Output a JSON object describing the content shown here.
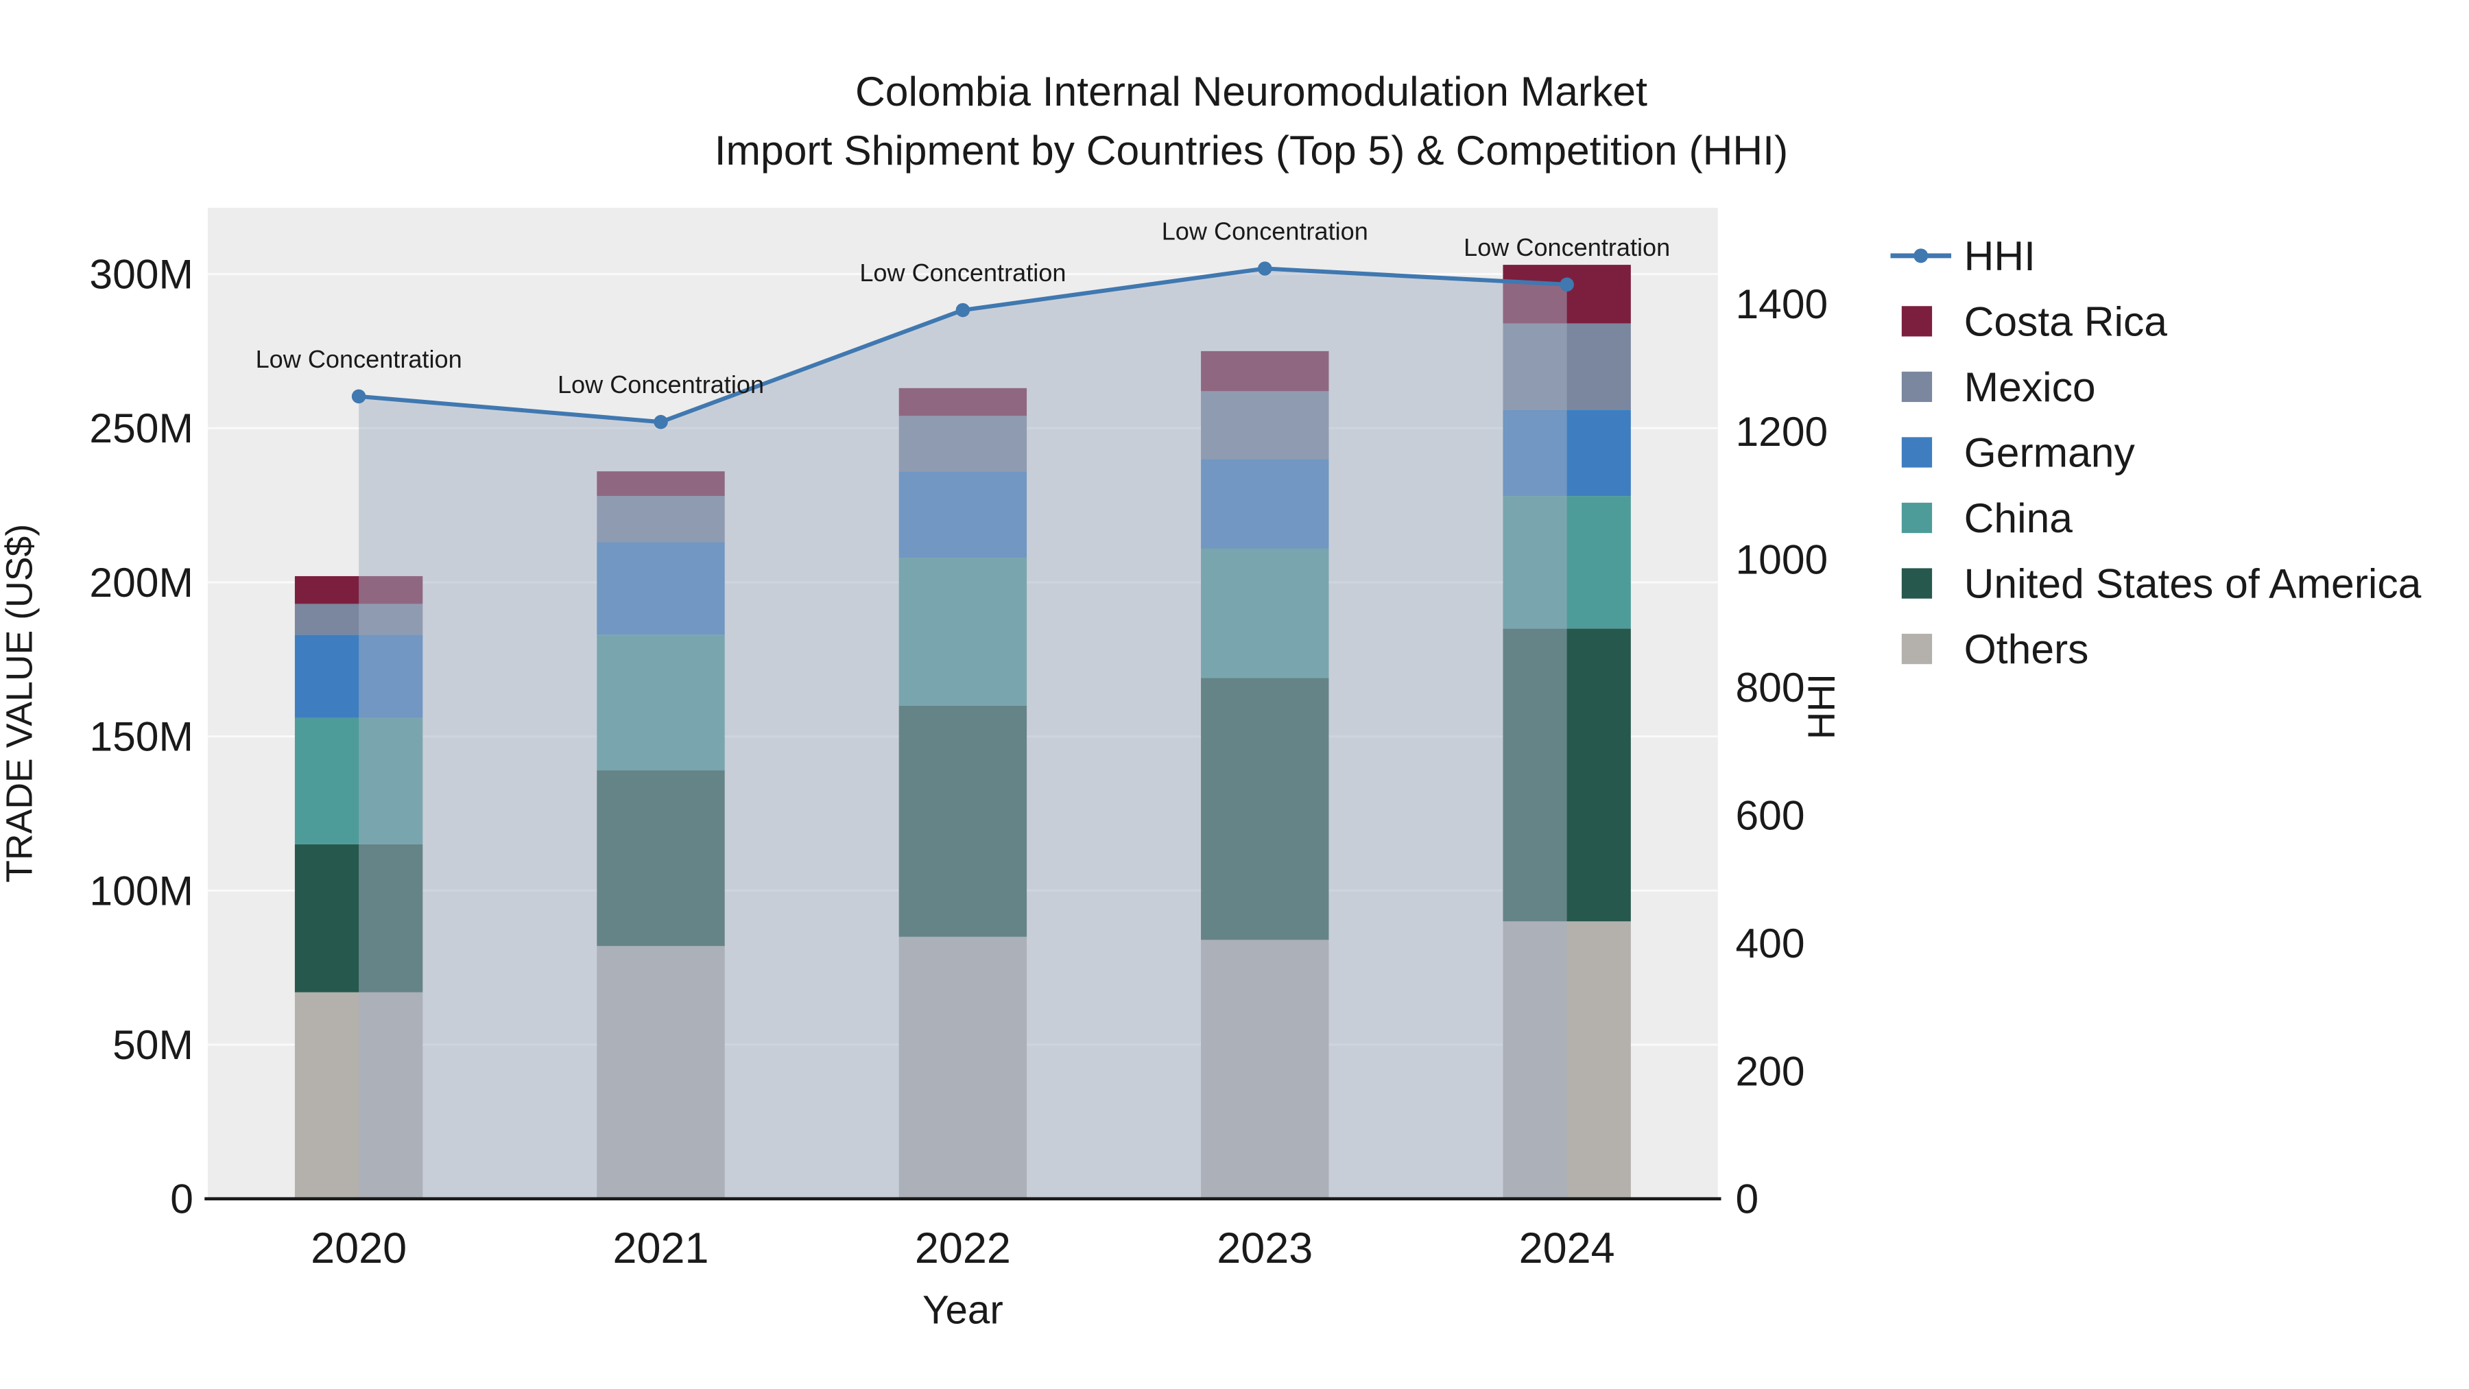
{
  "title": {
    "line1": "Colombia Internal Neuromodulation Market",
    "line2": "Import Shipment by Countries (Top 5) & Competition (HHI)"
  },
  "chart_data": {
    "type": "bar",
    "stacked": true,
    "overlay": "line",
    "categories": [
      "2020",
      "2021",
      "2022",
      "2023",
      "2024"
    ],
    "bar_unit": "millions of US$",
    "bar_series": [
      {
        "name": "Others",
        "color": "#b4b1ad",
        "values": [
          67,
          82,
          85,
          84,
          90
        ]
      },
      {
        "name": "United States of America",
        "color": "#27584d",
        "values": [
          48,
          57,
          75,
          85,
          95
        ]
      },
      {
        "name": "China",
        "color": "#4e9c99",
        "values": [
          41,
          44,
          48,
          42,
          43
        ]
      },
      {
        "name": "Germany",
        "color": "#3e7ec0",
        "values": [
          27,
          30,
          28,
          29,
          28
        ]
      },
      {
        "name": "Mexico",
        "color": "#7a879e",
        "values": [
          10,
          15,
          18,
          22,
          28
        ]
      },
      {
        "name": "Costa Rica",
        "color": "#7c1f3f",
        "values": [
          9,
          8,
          9,
          13,
          19
        ]
      }
    ],
    "line_series": {
      "name": "HHI",
      "color": "#4078b0",
      "fill_color": "rgba(164,176,196,0.5)",
      "values": [
        1255,
        1215,
        1390,
        1455,
        1430
      ],
      "annotations": [
        "Low Concentration",
        "Low Concentration",
        "Low Concentration",
        "Low Concentration",
        "Low Concentration"
      ]
    },
    "left_axis": {
      "label": "TRADE VALUE (US$)",
      "tick_labels": [
        "0",
        "50M",
        "100M",
        "150M",
        "200M",
        "250M",
        "300M"
      ],
      "tick_values": [
        0,
        50,
        100,
        150,
        200,
        250,
        300
      ],
      "range": [
        0,
        321.5
      ]
    },
    "right_axis": {
      "label": "HHI",
      "tick_labels": [
        "0",
        "200",
        "400",
        "600",
        "800",
        "1000",
        "1200",
        "1400"
      ],
      "tick_values": [
        0,
        200,
        400,
        600,
        800,
        1000,
        1200,
        1400
      ],
      "range": [
        0,
        1550
      ]
    },
    "x_axis": {
      "label": "Year"
    },
    "legend": {
      "position": "right",
      "items": [
        "HHI",
        "Costa Rica",
        "Mexico",
        "Germany",
        "China",
        "United States of America",
        "Others"
      ]
    },
    "grid": true,
    "plot_background": "#ededed"
  }
}
